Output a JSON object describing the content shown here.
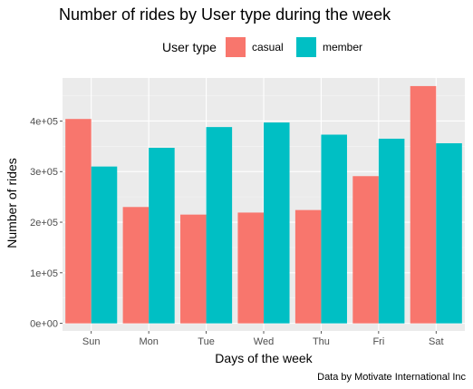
{
  "chart_data": {
    "type": "bar",
    "title": "Number of rides by User type during the week",
    "xlabel": "Days of the week",
    "ylabel": "Number of rides",
    "caption": "Data by Motivate International Inc",
    "categories": [
      "Sun",
      "Mon",
      "Tue",
      "Wed",
      "Thu",
      "Fri",
      "Sat"
    ],
    "series": [
      {
        "name": "casual",
        "values": [
          404000,
          230000,
          215000,
          219000,
          224000,
          291000,
          469000
        ]
      },
      {
        "name": "member",
        "values": [
          310000,
          347000,
          388000,
          397000,
          373000,
          365000,
          356000
        ]
      }
    ],
    "ylim": [
      -15000,
      485000
    ],
    "yticks": [
      0,
      100000,
      200000,
      300000,
      400000
    ],
    "ytick_labels": [
      "0e+00",
      "1e+05",
      "2e+05",
      "3e+05",
      "4e+05"
    ],
    "legend": {
      "title": "User type",
      "placement": "top"
    },
    "grid": true
  },
  "colors": {
    "casual": "#F8766D",
    "member": "#00BFC4",
    "panel": "#EBEBEB",
    "grid_major": "#FFFFFF",
    "grid_minor": "#F5F5F5",
    "tick": "#333333"
  }
}
